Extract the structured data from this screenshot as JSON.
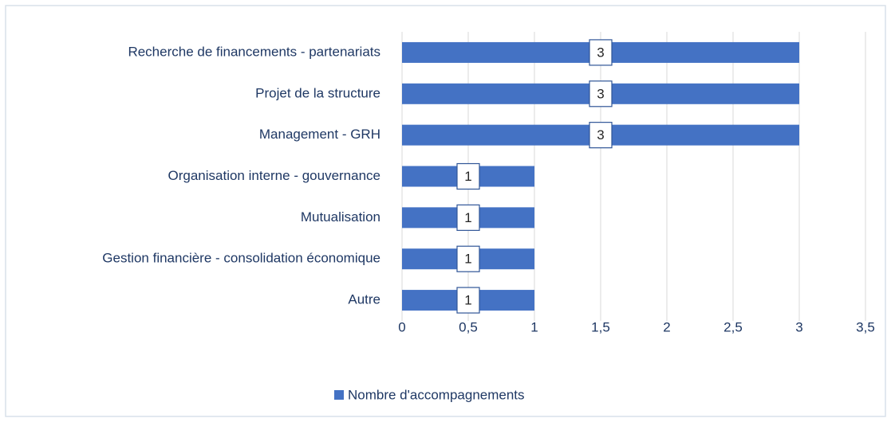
{
  "chart_data": {
    "type": "bar",
    "orientation": "horizontal",
    "categories": [
      "Recherche de financements - partenariats",
      "Projet de la structure",
      "Management - GRH",
      "Organisation interne - gouvernance",
      "Mutualisation",
      "Gestion financière - consolidation économique",
      "Autre"
    ],
    "series": [
      {
        "name": "Nombre d'accompagnements",
        "color": "#4472c4",
        "values": [
          3,
          3,
          3,
          1,
          1,
          1,
          1
        ]
      }
    ],
    "xlim": [
      0,
      3.5
    ],
    "xticks": [
      0,
      {
        "value": 0.5,
        "label": "0,5"
      },
      1,
      {
        "value": 1.5,
        "label": "1,5"
      },
      2,
      {
        "value": 2.5,
        "label": "2,5"
      },
      3,
      {
        "value": 3.5,
        "label": "3,5"
      }
    ],
    "grid": true,
    "legend": "bottom"
  }
}
